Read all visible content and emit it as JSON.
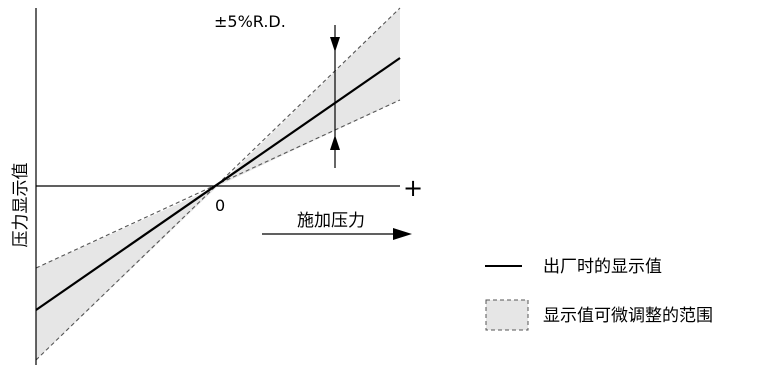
{
  "diagram": {
    "tolerance_label": "±5%R.D.",
    "y_axis_label": "压力显示值",
    "origin_label": "0",
    "plus_label": "+",
    "x_axis_label": "施加压力",
    "legend": {
      "line_label": "出厂时的显示值",
      "band_label": "显示值可微调整的范围"
    },
    "colors": {
      "band_fill": "#e6e6e6",
      "line": "#000000",
      "dashed": "#555555"
    }
  }
}
